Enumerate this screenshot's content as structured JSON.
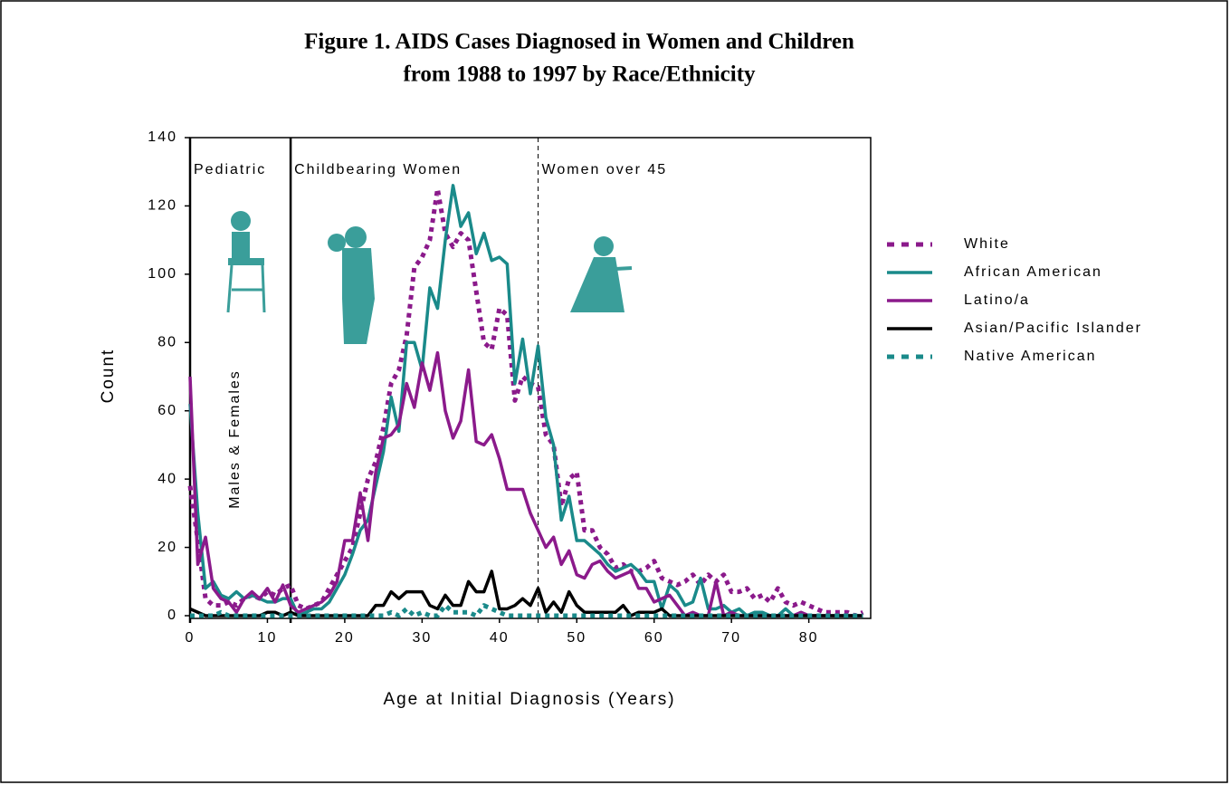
{
  "chart_data": {
    "type": "line",
    "title": "Figure 1. AIDS Cases Diagnosed in Women and Children",
    "subtitle": "from 1988 to 1997 by Race/Ethnicity",
    "x_label": "Age at Initial Diagnosis (Years)",
    "y_label": "Count",
    "xlim": [
      0,
      88
    ],
    "xticks": [
      0,
      10,
      20,
      30,
      40,
      50,
      60,
      70,
      80
    ],
    "ylim": [
      0,
      140
    ],
    "yticks": [
      0,
      20,
      40,
      60,
      80,
      100,
      120,
      140
    ],
    "regions": [
      {
        "label": "Pediatric",
        "start": 0,
        "dashed": false
      },
      {
        "label": "Childbearing Women",
        "start": 13,
        "dashed": false
      },
      {
        "label": "Women over 45",
        "start": 45,
        "dashed": true
      }
    ],
    "annotation": "Males & Females",
    "legend": "right",
    "x": [
      0,
      1,
      2,
      3,
      4,
      5,
      6,
      7,
      8,
      9,
      10,
      11,
      12,
      13,
      14,
      15,
      16,
      17,
      18,
      19,
      20,
      21,
      22,
      23,
      24,
      25,
      26,
      27,
      28,
      29,
      30,
      31,
      32,
      33,
      34,
      35,
      36,
      37,
      38,
      39,
      40,
      41,
      42,
      43,
      44,
      45,
      46,
      47,
      48,
      49,
      50,
      51,
      52,
      53,
      54,
      55,
      56,
      57,
      58,
      59,
      60,
      61,
      62,
      63,
      64,
      65,
      66,
      67,
      68,
      69,
      70,
      71,
      72,
      73,
      74,
      75,
      76,
      77,
      78,
      79,
      80,
      81,
      82,
      83,
      84,
      85,
      86,
      87
    ],
    "series": [
      {
        "name": "White",
        "color": "#8b1a8b",
        "dashed": true,
        "values": [
          38,
          22,
          5,
          3,
          3,
          4,
          3,
          5,
          6,
          5,
          7,
          6,
          8,
          9,
          3,
          2,
          3,
          4,
          8,
          12,
          16,
          20,
          30,
          40,
          45,
          55,
          68,
          72,
          82,
          102,
          105,
          110,
          125,
          112,
          108,
          112,
          110,
          95,
          80,
          78,
          90,
          88,
          63,
          70,
          68,
          67,
          53,
          50,
          32,
          40,
          42,
          25,
          25,
          20,
          18,
          14,
          15,
          13,
          13,
          14,
          16,
          11,
          10,
          9,
          10,
          12,
          9,
          12,
          10,
          12,
          7,
          7,
          8,
          5,
          6,
          4,
          8,
          4,
          3,
          4,
          3,
          2,
          1,
          1,
          1,
          1,
          0,
          1
        ]
      },
      {
        "name": "African American",
        "color": "#1a8a8a",
        "dashed": false,
        "values": [
          62,
          30,
          8,
          10,
          6,
          5,
          7,
          5,
          6,
          5,
          4,
          4,
          5,
          5,
          0,
          1,
          2,
          2,
          4,
          8,
          12,
          18,
          25,
          28,
          38,
          48,
          64,
          54,
          80,
          80,
          72,
          96,
          90,
          110,
          126,
          114,
          118,
          106,
          112,
          104,
          105,
          103,
          68,
          81,
          65,
          79,
          58,
          50,
          28,
          35,
          22,
          22,
          20,
          18,
          15,
          13,
          14,
          15,
          13,
          10,
          10,
          2,
          9,
          7,
          3,
          4,
          11,
          2,
          2,
          3,
          1,
          2,
          0,
          1,
          1,
          0,
          0,
          2,
          0,
          0,
          0,
          0,
          0,
          0,
          0,
          0,
          0,
          0
        ]
      },
      {
        "name": "Latino/a",
        "color": "#8b1a8b",
        "dashed": false,
        "values": [
          70,
          15,
          23,
          8,
          5,
          4,
          1,
          5,
          7,
          5,
          8,
          4,
          9,
          3,
          1,
          2,
          3,
          4,
          6,
          10,
          22,
          22,
          36,
          22,
          42,
          52,
          53,
          56,
          68,
          61,
          74,
          66,
          77,
          60,
          52,
          57,
          72,
          51,
          50,
          53,
          46,
          37,
          37,
          37,
          30,
          25,
          20,
          23,
          15,
          19,
          12,
          11,
          15,
          16,
          13,
          11,
          12,
          13,
          8,
          8,
          4,
          5,
          6,
          3,
          0,
          1,
          0,
          0,
          10,
          0,
          1,
          0,
          0,
          0,
          0,
          0,
          0,
          0,
          0,
          1,
          0,
          0,
          0,
          0,
          0,
          0,
          0,
          0
        ]
      },
      {
        "name": "Asian/Pacific Islander",
        "color": "#000000",
        "dashed": false,
        "values": [
          2,
          1,
          0,
          0,
          0,
          0,
          0,
          0,
          0,
          0,
          1,
          1,
          0,
          1,
          0,
          0,
          0,
          0,
          0,
          0,
          0,
          0,
          0,
          0,
          3,
          3,
          7,
          5,
          7,
          7,
          7,
          3,
          2,
          6,
          3,
          3,
          10,
          7,
          7,
          13,
          2,
          2,
          3,
          5,
          3,
          8,
          1,
          4,
          1,
          7,
          3,
          1,
          1,
          1,
          1,
          1,
          3,
          0,
          1,
          1,
          1,
          2,
          0,
          0,
          0,
          0,
          0,
          0,
          0,
          0,
          0,
          0,
          0,
          0,
          0,
          0,
          0,
          0,
          0,
          0,
          0,
          0,
          0,
          0,
          0,
          0,
          0,
          0
        ]
      },
      {
        "name": "Native American",
        "color": "#1a8a8a",
        "dashed": true,
        "values": [
          0,
          0,
          0,
          0,
          1,
          0,
          0,
          0,
          0,
          0,
          0,
          0,
          0,
          0,
          0,
          0,
          0,
          0,
          0,
          0,
          0,
          0,
          0,
          0,
          0,
          0,
          1,
          0,
          2,
          0,
          1,
          0,
          0,
          3,
          1,
          1,
          1,
          0,
          3,
          2,
          1,
          0,
          0,
          0,
          0,
          0,
          0,
          0,
          0,
          0,
          0,
          0,
          0,
          0,
          0,
          0,
          0,
          0,
          0,
          0,
          0,
          0,
          0,
          0,
          0,
          0,
          0,
          0,
          0,
          0,
          0,
          0,
          0,
          0,
          0,
          0,
          0,
          0,
          0,
          0,
          0,
          0,
          0,
          0,
          0,
          0,
          0,
          0
        ]
      }
    ]
  }
}
